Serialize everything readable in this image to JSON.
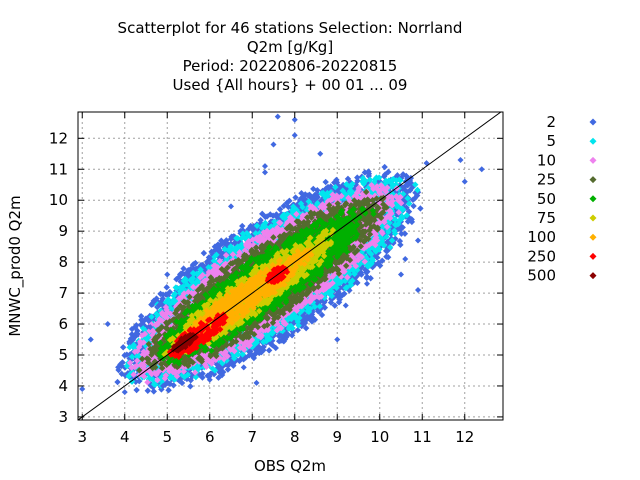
{
  "chart_data": {
    "type": "scatter",
    "title_lines": [
      "Scatterplot for   46 stations Selection: Norrland",
      "Q2m [g/Kg]",
      "Period: 20220806-20220815",
      "Used {All hours} + 00 01 ... 09"
    ],
    "xlabel": "OBS Q2m",
    "ylabel": "MNWC_prod0 Q2m",
    "xlim": [
      2.9,
      12.9
    ],
    "ylim": [
      2.9,
      12.85
    ],
    "xticks": [
      3,
      4,
      5,
      6,
      7,
      8,
      9,
      10,
      11,
      12
    ],
    "yticks": [
      3,
      4,
      5,
      6,
      7,
      8,
      9,
      10,
      11,
      12
    ],
    "grid": true,
    "legend_position": "outside-right",
    "reference_line": "y = x",
    "density_legend": [
      {
        "label": "2",
        "color": "#4169e1"
      },
      {
        "label": "5",
        "color": "#00e5ee"
      },
      {
        "label": "10",
        "color": "#ee82ee"
      },
      {
        "label": "25",
        "color": "#556b2f"
      },
      {
        "label": "50",
        "color": "#00b000"
      },
      {
        "label": "75",
        "color": "#cdcd00"
      },
      {
        "label": "100",
        "color": "#ffb000"
      },
      {
        "label": "250",
        "color": "#ff0000"
      },
      {
        "label": "500",
        "color": "#8b0000"
      }
    ],
    "density_regions": [
      {
        "level": "2",
        "color": "#4169e1",
        "center": [
          7.4,
          7.4
        ],
        "half_along": 4.3,
        "half_across": 1.55
      },
      {
        "level": "5",
        "color": "#00e5ee",
        "center": [
          7.4,
          7.4
        ],
        "half_along": 4.1,
        "half_across": 1.35
      },
      {
        "level": "10",
        "color": "#ee82ee",
        "center": [
          7.3,
          7.3
        ],
        "half_along": 3.9,
        "half_across": 1.15
      },
      {
        "level": "25",
        "color": "#556b2f",
        "center": [
          7.3,
          7.3
        ],
        "half_along": 3.6,
        "half_across": 0.95
      },
      {
        "level": "50",
        "color": "#00b000",
        "center": [
          7.2,
          7.2
        ],
        "half_along": 3.2,
        "half_across": 0.72
      },
      {
        "level": "75",
        "color": "#cdcd00",
        "center": [
          7.0,
          7.0
        ],
        "half_along": 2.6,
        "half_across": 0.5
      },
      {
        "level": "100",
        "color": "#ffb000",
        "center": [
          6.8,
          6.8
        ],
        "half_along": 2.1,
        "half_across": 0.35
      },
      {
        "level": "250",
        "color": "#ff0000",
        "center": [
          5.7,
          5.6
        ],
        "half_along": 0.9,
        "half_across": 0.28
      },
      {
        "level": "250",
        "color": "#ff0000",
        "center": [
          7.6,
          7.6
        ],
        "half_along": 0.3,
        "half_across": 0.18
      },
      {
        "level": "500",
        "color": "#8b0000",
        "center": [
          5.4,
          5.4
        ],
        "half_along": 0.35,
        "half_across": 0.12
      }
    ],
    "outlier_points": [
      {
        "x": 3.0,
        "y": 3.9
      },
      {
        "x": 3.2,
        "y": 5.5
      },
      {
        "x": 3.6,
        "y": 6.0
      },
      {
        "x": 4.0,
        "y": 3.8
      },
      {
        "x": 4.6,
        "y": 5.9
      },
      {
        "x": 4.8,
        "y": 6.6
      },
      {
        "x": 4.9,
        "y": 4.0
      },
      {
        "x": 5.0,
        "y": 7.6
      },
      {
        "x": 5.3,
        "y": 7.6
      },
      {
        "x": 5.6,
        "y": 7.9
      },
      {
        "x": 6.0,
        "y": 4.2
      },
      {
        "x": 6.3,
        "y": 8.6
      },
      {
        "x": 6.5,
        "y": 9.8
      },
      {
        "x": 6.8,
        "y": 4.6
      },
      {
        "x": 7.1,
        "y": 4.1
      },
      {
        "x": 7.3,
        "y": 10.9
      },
      {
        "x": 7.3,
        "y": 11.1
      },
      {
        "x": 7.5,
        "y": 11.8
      },
      {
        "x": 7.6,
        "y": 12.7
      },
      {
        "x": 8.0,
        "y": 12.1
      },
      {
        "x": 8.0,
        "y": 12.6
      },
      {
        "x": 8.6,
        "y": 11.5
      },
      {
        "x": 9.0,
        "y": 5.5
      },
      {
        "x": 9.2,
        "y": 6.6
      },
      {
        "x": 9.7,
        "y": 7.3
      },
      {
        "x": 10.5,
        "y": 7.6
      },
      {
        "x": 10.6,
        "y": 8.1
      },
      {
        "x": 10.9,
        "y": 7.1
      },
      {
        "x": 10.9,
        "y": 8.7
      },
      {
        "x": 11.1,
        "y": 11.2
      },
      {
        "x": 11.9,
        "y": 11.3
      },
      {
        "x": 12.0,
        "y": 10.6
      },
      {
        "x": 12.4,
        "y": 11.0
      }
    ]
  }
}
